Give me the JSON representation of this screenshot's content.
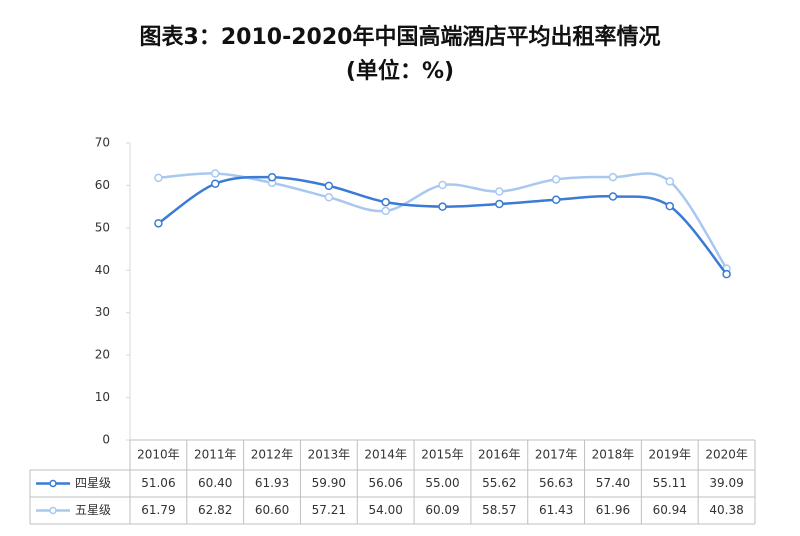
{
  "chart_data": {
    "type": "line",
    "title": "图表3：2010-2020年中国高端酒店平均出租率情况",
    "subtitle": "(单位：%)",
    "categories": [
      "2010年",
      "2011年",
      "2012年",
      "2013年",
      "2014年",
      "2015年",
      "2016年",
      "2017年",
      "2018年",
      "2019年",
      "2020年"
    ],
    "series": [
      {
        "name": "四星级",
        "color": "#3a7bd5",
        "values": [
          51.06,
          60.4,
          61.93,
          59.9,
          56.06,
          55.0,
          55.62,
          56.63,
          57.4,
          55.11,
          39.09
        ],
        "value_labels": [
          "51.06",
          "60.40",
          "61.93",
          "59.90",
          "56.06",
          "55.00",
          "55.62",
          "56.63",
          "57.40",
          "55.11",
          "39.09"
        ]
      },
      {
        "name": "五星级",
        "color": "#a9c8f0",
        "values": [
          61.79,
          62.82,
          60.6,
          57.21,
          54.0,
          60.09,
          58.57,
          61.43,
          61.96,
          60.94,
          40.38
        ],
        "value_labels": [
          "61.79",
          "62.82",
          "60.60",
          "57.21",
          "54.00",
          "60.09",
          "58.57",
          "61.43",
          "61.96",
          "60.94",
          "40.38"
        ]
      }
    ],
    "ylim": [
      0,
      70
    ],
    "yticks": [
      0,
      10,
      20,
      30,
      40,
      50,
      60,
      70
    ],
    "grid": false
  }
}
